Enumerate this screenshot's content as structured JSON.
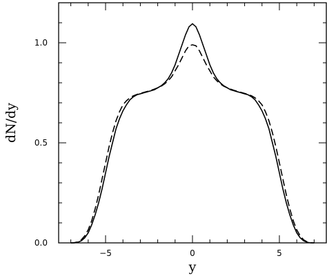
{
  "chart_data": {
    "type": "line",
    "title": "",
    "xlabel": "y",
    "ylabel": "dN/dy",
    "xlim": [
      -7.7,
      7.7
    ],
    "ylim": [
      0,
      1.2
    ],
    "grid": false,
    "x_ticks": [
      -5,
      0,
      5
    ],
    "x_tick_labels": [
      "−5",
      "0",
      "5"
    ],
    "y_ticks": [
      0.0,
      0.5,
      1.0
    ],
    "y_tick_labels": [
      "0.0",
      "0.5",
      "1.0"
    ],
    "series": [
      {
        "style": "solid",
        "color": "#000000",
        "points": [
          [
            -7.0,
            0.0
          ],
          [
            -6.8,
            0.0
          ],
          [
            -6.6,
            0.003
          ],
          [
            -6.4,
            0.01
          ],
          [
            -6.2,
            0.025
          ],
          [
            -6.0,
            0.05
          ],
          [
            -5.8,
            0.09
          ],
          [
            -5.6,
            0.14
          ],
          [
            -5.4,
            0.2
          ],
          [
            -5.2,
            0.27
          ],
          [
            -5.0,
            0.35
          ],
          [
            -4.8,
            0.43
          ],
          [
            -4.6,
            0.5
          ],
          [
            -4.4,
            0.57
          ],
          [
            -4.2,
            0.62
          ],
          [
            -4.0,
            0.66
          ],
          [
            -3.8,
            0.69
          ],
          [
            -3.6,
            0.715
          ],
          [
            -3.4,
            0.73
          ],
          [
            -3.2,
            0.74
          ],
          [
            -3.0,
            0.745
          ],
          [
            -2.8,
            0.75
          ],
          [
            -2.6,
            0.755
          ],
          [
            -2.4,
            0.76
          ],
          [
            -2.2,
            0.765
          ],
          [
            -2.0,
            0.775
          ],
          [
            -1.8,
            0.785
          ],
          [
            -1.6,
            0.8
          ],
          [
            -1.4,
            0.82
          ],
          [
            -1.2,
            0.85
          ],
          [
            -1.0,
            0.89
          ],
          [
            -0.8,
            0.94
          ],
          [
            -0.6,
            0.99
          ],
          [
            -0.4,
            1.04
          ],
          [
            -0.2,
            1.08
          ],
          [
            0.0,
            1.095
          ],
          [
            0.2,
            1.08
          ],
          [
            0.4,
            1.04
          ],
          [
            0.6,
            0.99
          ],
          [
            0.8,
            0.94
          ],
          [
            1.0,
            0.89
          ],
          [
            1.2,
            0.85
          ],
          [
            1.4,
            0.82
          ],
          [
            1.6,
            0.8
          ],
          [
            1.8,
            0.785
          ],
          [
            2.0,
            0.775
          ],
          [
            2.2,
            0.765
          ],
          [
            2.4,
            0.76
          ],
          [
            2.6,
            0.755
          ],
          [
            2.8,
            0.75
          ],
          [
            3.0,
            0.745
          ],
          [
            3.2,
            0.74
          ],
          [
            3.4,
            0.73
          ],
          [
            3.6,
            0.715
          ],
          [
            3.8,
            0.69
          ],
          [
            4.0,
            0.66
          ],
          [
            4.2,
            0.62
          ],
          [
            4.4,
            0.57
          ],
          [
            4.6,
            0.5
          ],
          [
            4.8,
            0.43
          ],
          [
            5.0,
            0.35
          ],
          [
            5.2,
            0.27
          ],
          [
            5.4,
            0.2
          ],
          [
            5.6,
            0.14
          ],
          [
            5.8,
            0.09
          ],
          [
            6.0,
            0.05
          ],
          [
            6.2,
            0.025
          ],
          [
            6.4,
            0.01
          ],
          [
            6.6,
            0.003
          ],
          [
            6.8,
            0.0
          ],
          [
            7.0,
            0.0
          ]
        ]
      },
      {
        "style": "dashed",
        "color": "#000000",
        "points": [
          [
            -7.0,
            0.0
          ],
          [
            -6.8,
            0.001
          ],
          [
            -6.6,
            0.005
          ],
          [
            -6.4,
            0.015
          ],
          [
            -6.2,
            0.035
          ],
          [
            -6.0,
            0.065
          ],
          [
            -5.8,
            0.11
          ],
          [
            -5.6,
            0.17
          ],
          [
            -5.4,
            0.24
          ],
          [
            -5.2,
            0.32
          ],
          [
            -5.0,
            0.4
          ],
          [
            -4.8,
            0.48
          ],
          [
            -4.6,
            0.55
          ],
          [
            -4.4,
            0.61
          ],
          [
            -4.2,
            0.655
          ],
          [
            -4.0,
            0.69
          ],
          [
            -3.8,
            0.71
          ],
          [
            -3.6,
            0.725
          ],
          [
            -3.4,
            0.735
          ],
          [
            -3.2,
            0.742
          ],
          [
            -3.0,
            0.747
          ],
          [
            -2.8,
            0.752
          ],
          [
            -2.6,
            0.757
          ],
          [
            -2.4,
            0.762
          ],
          [
            -2.2,
            0.768
          ],
          [
            -2.0,
            0.775
          ],
          [
            -1.8,
            0.783
          ],
          [
            -1.6,
            0.795
          ],
          [
            -1.4,
            0.81
          ],
          [
            -1.2,
            0.83
          ],
          [
            -1.0,
            0.86
          ],
          [
            -0.8,
            0.89
          ],
          [
            -0.6,
            0.925
          ],
          [
            -0.4,
            0.96
          ],
          [
            -0.2,
            0.985
          ],
          [
            0.0,
            0.99
          ],
          [
            0.2,
            0.985
          ],
          [
            0.4,
            0.96
          ],
          [
            0.6,
            0.925
          ],
          [
            0.8,
            0.89
          ],
          [
            1.0,
            0.86
          ],
          [
            1.2,
            0.83
          ],
          [
            1.4,
            0.81
          ],
          [
            1.6,
            0.795
          ],
          [
            1.8,
            0.783
          ],
          [
            2.0,
            0.775
          ],
          [
            2.2,
            0.768
          ],
          [
            2.4,
            0.762
          ],
          [
            2.6,
            0.757
          ],
          [
            2.8,
            0.752
          ],
          [
            3.0,
            0.747
          ],
          [
            3.2,
            0.742
          ],
          [
            3.4,
            0.735
          ],
          [
            3.6,
            0.725
          ],
          [
            3.8,
            0.71
          ],
          [
            4.0,
            0.69
          ],
          [
            4.2,
            0.655
          ],
          [
            4.4,
            0.61
          ],
          [
            4.6,
            0.55
          ],
          [
            4.8,
            0.48
          ],
          [
            5.0,
            0.4
          ],
          [
            5.2,
            0.32
          ],
          [
            5.4,
            0.24
          ],
          [
            5.6,
            0.17
          ],
          [
            5.8,
            0.11
          ],
          [
            6.0,
            0.065
          ],
          [
            6.2,
            0.035
          ],
          [
            6.4,
            0.015
          ],
          [
            6.6,
            0.005
          ],
          [
            6.8,
            0.001
          ],
          [
            7.0,
            0.0
          ]
        ]
      }
    ]
  }
}
